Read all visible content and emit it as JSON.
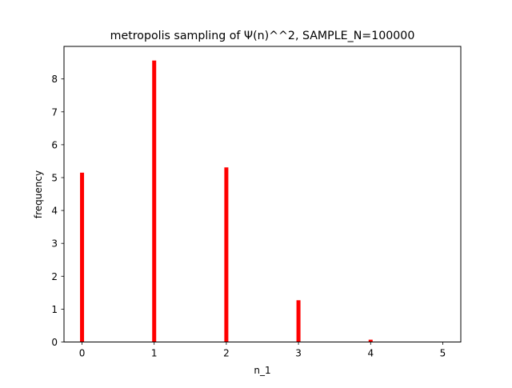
{
  "chart_data": {
    "type": "bar",
    "title": "metropolis sampling of Ψ(n)^^2, SAMPLE_N=100000",
    "xlabel": "n_1",
    "ylabel": "frequency",
    "x": [
      0,
      1,
      2,
      3,
      4,
      5
    ],
    "values": [
      5.15,
      8.56,
      5.31,
      1.27,
      0.07,
      0.0
    ],
    "xlim": [
      -0.25,
      5.25
    ],
    "ylim": [
      0,
      8.99
    ],
    "xticks": [
      0,
      1,
      2,
      3,
      4,
      5
    ],
    "xtick_labels": [
      "0",
      "1",
      "2",
      "3",
      "4",
      "5"
    ],
    "yticks": [
      0,
      1,
      2,
      3,
      4,
      5,
      6,
      7,
      8
    ],
    "ytick_labels": [
      "0",
      "1",
      "2",
      "3",
      "4",
      "5",
      "6",
      "7",
      "8"
    ],
    "bar_color": "#ff0000",
    "grid": false,
    "legend": "none"
  }
}
